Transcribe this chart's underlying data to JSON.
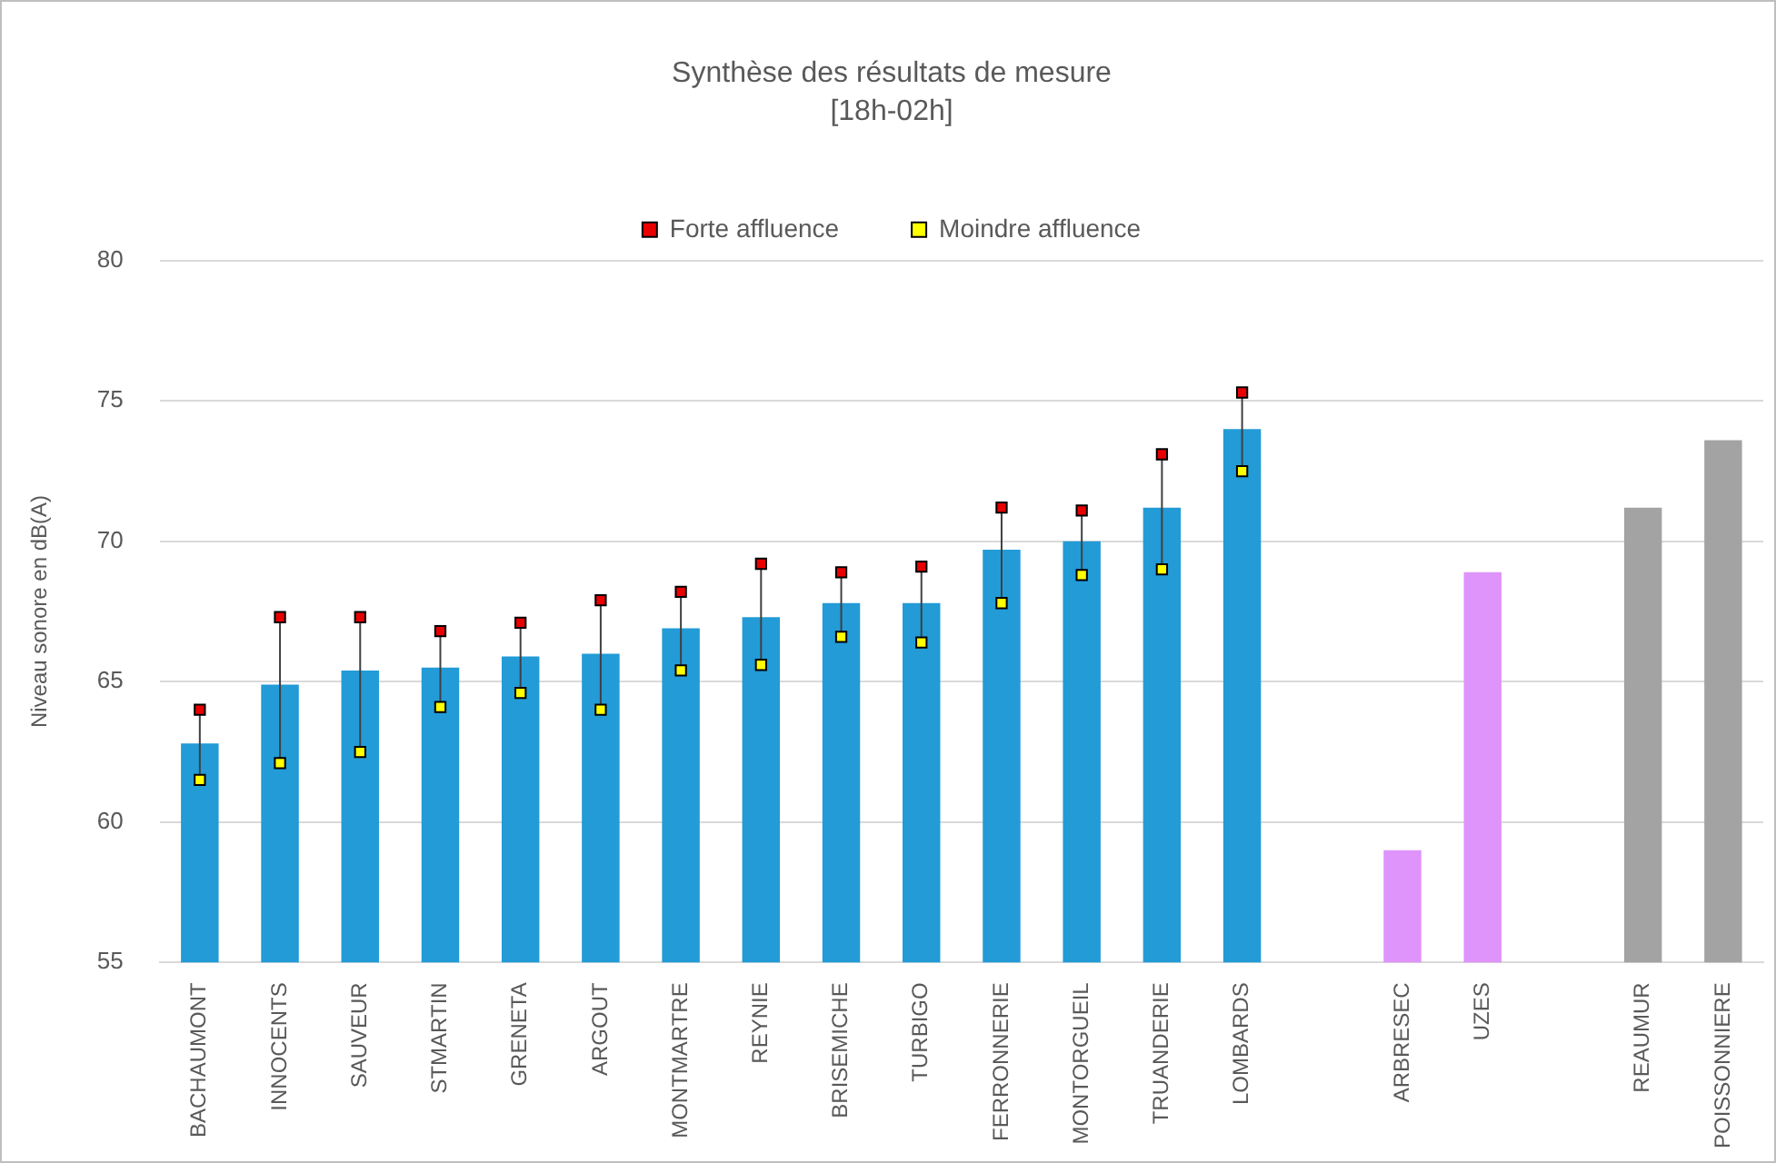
{
  "chart_data": {
    "type": "bar",
    "title": "Synthèse des résultats de mesure",
    "subtitle": "[18h-02h]",
    "ylabel": "Niveau sonore en dB(A)",
    "categories": [
      "BACHAUMONT",
      "INNOCENTS",
      "SAUVEUR",
      "STMARTIN",
      "GRENETA",
      "ARGOUT",
      "MONTMARTRE",
      "REYNIE",
      "BRISEMICHE",
      "TURBIGO",
      "FERRONNERIE",
      "MONTORGUEIL",
      "TRUANDERIE",
      "LOMBARDS",
      null,
      "ARBRESEC",
      "UZES",
      null,
      "REAUMUR",
      "POISSONNIERE"
    ],
    "series": [
      {
        "type": "bar",
        "colors": [
          "#229bd7",
          "#229bd7",
          "#229bd7",
          "#229bd7",
          "#229bd7",
          "#229bd7",
          "#229bd7",
          "#229bd7",
          "#229bd7",
          "#229bd7",
          "#229bd7",
          "#229bd7",
          "#229bd7",
          "#229bd7",
          "#229bd7",
          "#de94fa",
          "#de94fa",
          "#a3a3a3",
          "#a3a3a3",
          "#a3a3a3"
        ],
        "values": [
          62.8,
          64.9,
          65.4,
          65.5,
          65.9,
          66.0,
          66.9,
          67.3,
          67.8,
          67.8,
          69.7,
          70.0,
          71.2,
          74.0,
          null,
          59.0,
          68.9,
          null,
          71.2,
          73.6
        ]
      },
      {
        "type": "scatter",
        "name": "Forte affluence",
        "color": "#e80000",
        "values": [
          64.0,
          67.3,
          67.3,
          66.8,
          67.1,
          67.9,
          68.2,
          69.2,
          68.9,
          69.1,
          71.2,
          71.1,
          73.1,
          75.3,
          null,
          null,
          null,
          null,
          null,
          null
        ]
      },
      {
        "type": "scatter",
        "name": "Moindre affluence",
        "color": "#ffff00",
        "values": [
          61.5,
          62.1,
          62.5,
          64.1,
          64.6,
          64.0,
          65.4,
          65.6,
          66.6,
          66.4,
          67.8,
          68.8,
          69.0,
          72.5,
          null,
          null,
          null,
          null,
          null,
          null
        ]
      }
    ],
    "ylim": [
      55,
      80
    ],
    "yticks": [
      55,
      60,
      65,
      70,
      75,
      80
    ],
    "grid": "y",
    "legend": "top",
    "marker": "square"
  }
}
